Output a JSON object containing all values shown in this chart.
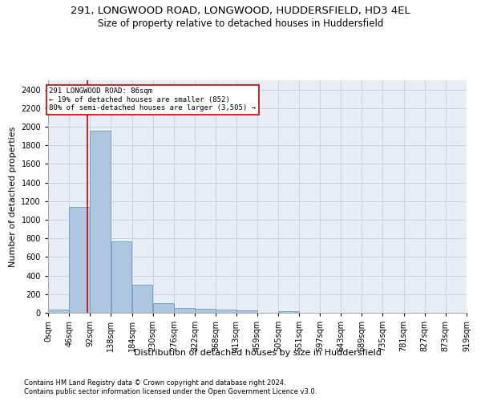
{
  "title1": "291, LONGWOOD ROAD, LONGWOOD, HUDDERSFIELD, HD3 4EL",
  "title2": "Size of property relative to detached houses in Huddersfield",
  "xlabel": "Distribution of detached houses by size in Huddersfield",
  "ylabel": "Number of detached properties",
  "footnote1": "Contains HM Land Registry data © Crown copyright and database right 2024.",
  "footnote2": "Contains public sector information licensed under the Open Government Licence v3.0.",
  "bar_color": "#aec6df",
  "bar_edge_color": "#6a9ec5",
  "grid_color": "#c8d4e4",
  "background_color": "#e8eef6",
  "annotation_box_color": "#cc0000",
  "annotation_text": "291 LONGWOOD ROAD: 86sqm\n← 19% of detached houses are smaller (852)\n80% of semi-detached houses are larger (3,505) →",
  "property_line_x": 86,
  "property_line_color": "#cc0000",
  "bin_edges": [
    0,
    46,
    92,
    138,
    184,
    230,
    276,
    322,
    368,
    413,
    459,
    505,
    551,
    597,
    643,
    689,
    735,
    781,
    827,
    873,
    919
  ],
  "bin_counts": [
    35,
    1140,
    1960,
    770,
    300,
    105,
    50,
    45,
    35,
    25,
    0,
    20,
    0,
    0,
    0,
    0,
    0,
    0,
    0,
    0
  ],
  "ylim": [
    0,
    2500
  ],
  "yticks": [
    0,
    200,
    400,
    600,
    800,
    1000,
    1200,
    1400,
    1600,
    1800,
    2000,
    2200,
    2400
  ],
  "title1_fontsize": 9.5,
  "title2_fontsize": 8.5,
  "xlabel_fontsize": 8,
  "ylabel_fontsize": 8,
  "tick_fontsize": 7,
  "footnote_fontsize": 6
}
